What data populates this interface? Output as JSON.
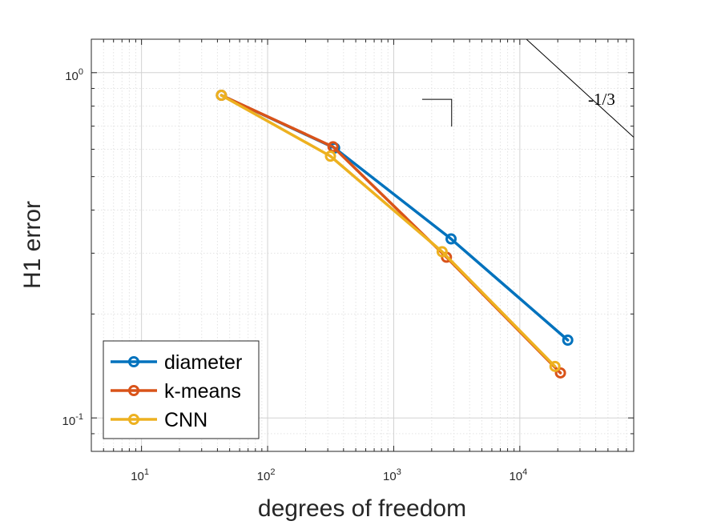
{
  "chart_data": {
    "type": "line",
    "xscale": "log",
    "yscale": "log",
    "xlim": [
      4,
      80000
    ],
    "ylim": [
      0.08,
      1.25
    ],
    "xlabel": "degrees of freedom",
    "ylabel": "H1 error",
    "x_ticks": [
      {
        "value": 10,
        "base": "10",
        "exp": "1"
      },
      {
        "value": 100,
        "base": "10",
        "exp": "2"
      },
      {
        "value": 1000,
        "base": "10",
        "exp": "3"
      },
      {
        "value": 10000,
        "base": "10",
        "exp": "4"
      }
    ],
    "y_ticks": [
      {
        "value": 0.1,
        "base": "10",
        "exp": "-1"
      },
      {
        "value": 1,
        "base": "10",
        "exp": "0"
      }
    ],
    "grid": true,
    "legend_position": "bottom-left",
    "series": [
      {
        "name": "diameter",
        "color": "#0072BD",
        "x": [
          43,
          340,
          2850,
          24000
        ],
        "y": [
          0.86,
          0.605,
          0.33,
          0.168
        ]
      },
      {
        "name": "k-means",
        "color": "#D95319",
        "x": [
          43,
          330,
          2620,
          21000
        ],
        "y": [
          0.86,
          0.61,
          0.292,
          0.135
        ]
      },
      {
        "name": "CNN",
        "color": "#EDB120",
        "x": [
          43,
          315,
          2420,
          19000
        ],
        "y": [
          0.86,
          0.573,
          0.303,
          0.141
        ]
      }
    ],
    "reference_line": {
      "label": "-1/3",
      "x": [
        6400,
        80000
      ],
      "y": [
        1.51,
        0.65
      ],
      "triangle": {
        "x": [
          1680,
          2880
        ],
        "y": [
          0.837,
          0.698
        ]
      }
    }
  }
}
